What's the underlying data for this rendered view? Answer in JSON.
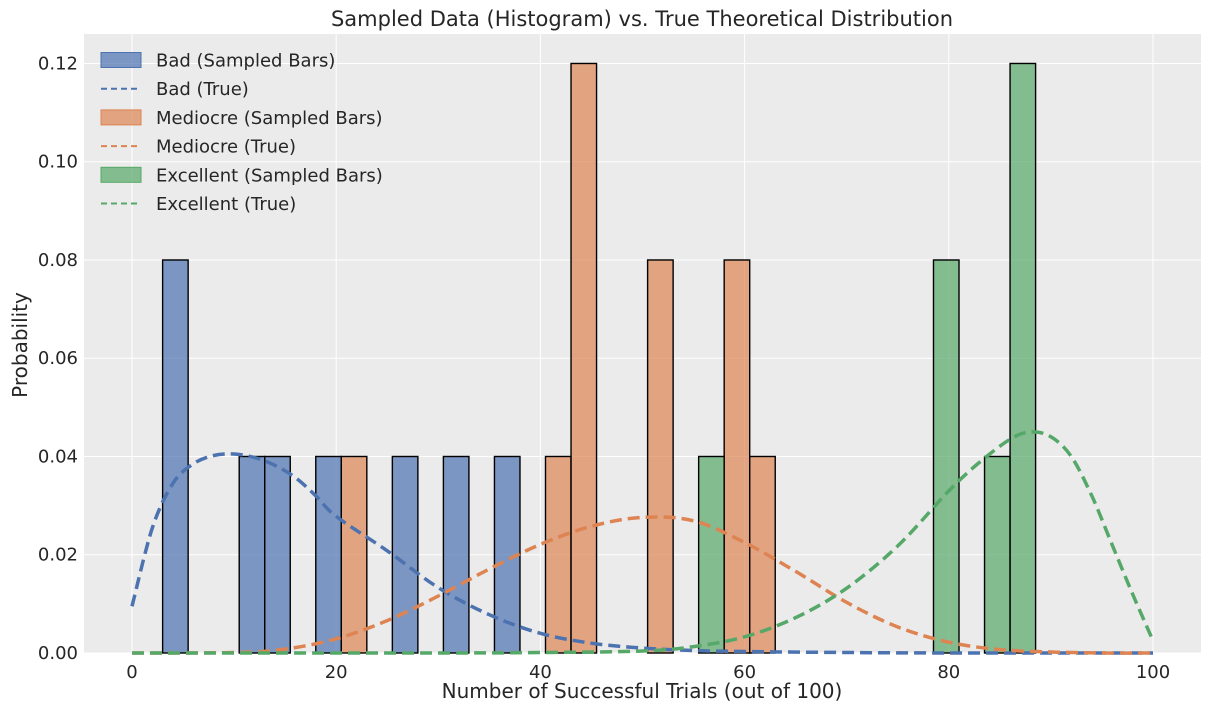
{
  "chart_data": {
    "type": "bar",
    "title": "Sampled Data (Histogram) vs. True Theoretical Distribution",
    "xlabel": "Number of Successful Trials (out of 100)",
    "ylabel": "Probability",
    "xlim": [
      -4.7,
      104.7
    ],
    "ylim": [
      0,
      0.126
    ],
    "xticks": [
      0,
      20,
      40,
      60,
      80,
      100
    ],
    "xtick_labels": [
      "0",
      "20",
      "40",
      "60",
      "80",
      "100"
    ],
    "yticks": [
      0,
      0.02,
      0.04,
      0.06,
      0.08,
      0.1,
      0.12
    ],
    "ytick_labels": [
      "0.00",
      "0.02",
      "0.04",
      "0.06",
      "0.08",
      "0.10",
      "0.12"
    ],
    "grid": true,
    "legend_position": "top-left",
    "bin_width": 2.5,
    "colors": {
      "bad": "#4c72b0",
      "mediocre": "#dd8452",
      "excellent": "#55a868",
      "background": "#ebebeb",
      "grid": "#ffffff"
    },
    "legend": [
      {
        "label": "Bad (Sampled Bars)",
        "kind": "bar",
        "series": "bad"
      },
      {
        "label": "Bad (True)",
        "kind": "line",
        "series": "bad"
      },
      {
        "label": "Mediocre (Sampled Bars)",
        "kind": "bar",
        "series": "mediocre"
      },
      {
        "label": "Mediocre (True)",
        "kind": "line",
        "series": "mediocre"
      },
      {
        "label": "Excellent (Sampled Bars)",
        "kind": "bar",
        "series": "excellent"
      },
      {
        "label": "Excellent (True)",
        "kind": "line",
        "series": "excellent"
      }
    ],
    "bars": [
      {
        "series": "bad",
        "x": 3.0,
        "value": 0.08
      },
      {
        "series": "bad",
        "x": 10.5,
        "value": 0.04
      },
      {
        "series": "bad",
        "x": 13.0,
        "value": 0.04
      },
      {
        "series": "bad",
        "x": 18.0,
        "value": 0.04
      },
      {
        "series": "mediocre",
        "x": 20.5,
        "value": 0.04
      },
      {
        "series": "bad",
        "x": 25.5,
        "value": 0.04
      },
      {
        "series": "bad",
        "x": 30.5,
        "value": 0.04
      },
      {
        "series": "bad",
        "x": 35.5,
        "value": 0.04
      },
      {
        "series": "mediocre",
        "x": 40.5,
        "value": 0.04
      },
      {
        "series": "mediocre",
        "x": 43.0,
        "value": 0.12
      },
      {
        "series": "mediocre",
        "x": 50.5,
        "value": 0.08
      },
      {
        "series": "excellent",
        "x": 55.5,
        "value": 0.04
      },
      {
        "series": "mediocre",
        "x": 58.0,
        "value": 0.08
      },
      {
        "series": "mediocre",
        "x": 60.5,
        "value": 0.04
      },
      {
        "series": "excellent",
        "x": 78.5,
        "value": 0.08
      },
      {
        "series": "excellent",
        "x": 83.5,
        "value": 0.04
      },
      {
        "series": "excellent",
        "x": 86.0,
        "value": 0.12
      }
    ],
    "series": [
      {
        "name": "Bad (True)",
        "key": "bad",
        "x": [
          0,
          2,
          4,
          6,
          8,
          10,
          12,
          14,
          16,
          18,
          20,
          25,
          30,
          35,
          40,
          45,
          50,
          55,
          60,
          70,
          80,
          90,
          100
        ],
        "values": [
          0.0095,
          0.0255,
          0.0345,
          0.0385,
          0.0402,
          0.0405,
          0.0398,
          0.0382,
          0.0357,
          0.032,
          0.0278,
          0.0208,
          0.0133,
          0.0078,
          0.004,
          0.002,
          0.001,
          0.0005,
          0.0003,
          0.0001,
          0.0,
          0.0,
          0.0
        ]
      },
      {
        "name": "Mediocre (True)",
        "key": "mediocre",
        "x": [
          0,
          10,
          15,
          20,
          25,
          30,
          35,
          40,
          45,
          50,
          55,
          60,
          65,
          70,
          75,
          80,
          85,
          90,
          95,
          100
        ],
        "values": [
          0.0,
          0.0001,
          0.0008,
          0.0029,
          0.0066,
          0.0116,
          0.0171,
          0.0221,
          0.0258,
          0.0276,
          0.0269,
          0.0225,
          0.0166,
          0.0103,
          0.0053,
          0.0022,
          0.0007,
          0.0002,
          0.0,
          0.0
        ]
      },
      {
        "name": "Excellent (True)",
        "key": "excellent",
        "x": [
          0,
          30,
          40,
          50,
          55,
          60,
          65,
          70,
          75,
          80,
          83,
          86,
          88,
          90,
          92,
          94,
          96,
          98,
          100
        ],
        "values": [
          0.0,
          0.0,
          0.0001,
          0.0004,
          0.0013,
          0.0033,
          0.0072,
          0.0132,
          0.0218,
          0.033,
          0.0388,
          0.0435,
          0.045,
          0.044,
          0.04,
          0.032,
          0.022,
          0.012,
          0.0025
        ]
      }
    ]
  }
}
